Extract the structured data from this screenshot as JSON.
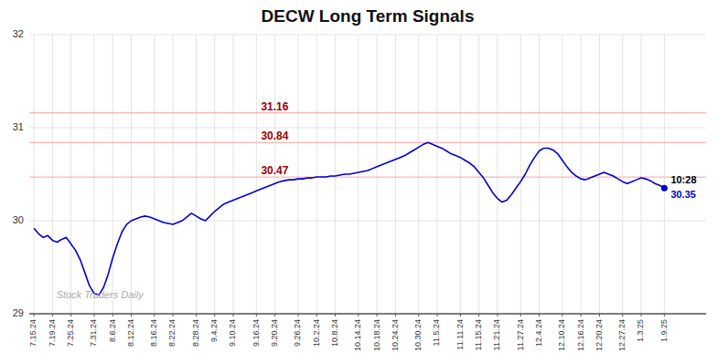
{
  "chart_data": {
    "type": "line",
    "title": "DECW Long Term Signals",
    "color": "#0000cc",
    "ylim": [
      29.0,
      32.0
    ],
    "yticks": [
      29,
      30,
      31,
      32
    ],
    "grid": true,
    "hlines": [
      {
        "y": 31.16,
        "label": "31.16",
        "color": "#ffb3b3",
        "label_color": "#990000"
      },
      {
        "y": 30.84,
        "label": "30.84",
        "color": "#ffb3b3",
        "label_color": "#990000"
      },
      {
        "y": 30.47,
        "label": "30.47",
        "color": "#ffb3b3",
        "label_color": "#990000"
      }
    ],
    "annotations": [
      {
        "text": "Stock Traders Daily",
        "color": "#aaaaaa"
      },
      {
        "text": "10:28",
        "color": "#000000"
      },
      {
        "text": "30.35",
        "color": "#0000cc"
      }
    ],
    "categories": [
      "7.15.24",
      null,
      null,
      null,
      "7.19.24",
      null,
      null,
      null,
      "7.25.24",
      null,
      null,
      null,
      null,
      "7.31.24",
      null,
      null,
      null,
      "8.6.24",
      null,
      null,
      null,
      "8.12.24",
      null,
      null,
      null,
      null,
      "8.16.24",
      null,
      null,
      null,
      "8.22.24",
      null,
      null,
      null,
      null,
      "8.28.24",
      null,
      null,
      null,
      "9.4.24",
      null,
      null,
      null,
      "9.10.24",
      null,
      null,
      null,
      null,
      "9.16.24",
      null,
      null,
      null,
      "9.20.24",
      null,
      null,
      null,
      null,
      "9.26.24",
      null,
      null,
      null,
      "10.2.24",
      null,
      null,
      null,
      "10.8.24",
      null,
      null,
      null,
      null,
      "10.14.24",
      null,
      null,
      null,
      "10.18.24",
      null,
      null,
      null,
      "10.24.24",
      null,
      null,
      null,
      null,
      "10.30.24",
      null,
      null,
      null,
      "11.5.24",
      null,
      null,
      null,
      null,
      "11.11.24",
      null,
      null,
      null,
      "11.15.24",
      null,
      null,
      null,
      "11.21.24",
      null,
      null,
      null,
      null,
      "11.27.24",
      null,
      null,
      null,
      "12.4.24",
      null,
      null,
      null,
      null,
      "12.10.24",
      null,
      null,
      null,
      "12.16.24",
      null,
      null,
      null,
      "12.20.24",
      null,
      null,
      null,
      null,
      "12.27.24",
      null,
      null,
      null,
      "1.3.25",
      null,
      null,
      null,
      null,
      "1.9.25"
    ],
    "values": [
      29.92,
      29.86,
      29.82,
      29.84,
      29.79,
      29.77,
      29.8,
      29.82,
      29.75,
      29.68,
      29.58,
      29.44,
      29.3,
      29.22,
      29.2,
      29.28,
      29.42,
      29.6,
      29.75,
      29.88,
      29.96,
      30.0,
      30.02,
      30.04,
      30.05,
      30.04,
      30.02,
      30.0,
      29.98,
      29.97,
      29.96,
      29.98,
      30.0,
      30.04,
      30.08,
      30.05,
      30.02,
      30.0,
      30.05,
      30.1,
      30.14,
      30.18,
      30.2,
      30.22,
      30.24,
      30.26,
      30.28,
      30.3,
      30.32,
      30.34,
      30.36,
      30.38,
      30.4,
      30.42,
      30.43,
      30.44,
      30.44,
      30.45,
      30.45,
      30.46,
      30.46,
      30.47,
      30.47,
      30.47,
      30.48,
      30.48,
      30.49,
      30.5,
      30.5,
      30.51,
      30.52,
      30.53,
      30.54,
      30.56,
      30.58,
      30.6,
      30.62,
      30.64,
      30.66,
      30.68,
      30.7,
      30.73,
      30.76,
      30.79,
      30.82,
      30.84,
      30.82,
      30.8,
      30.78,
      30.75,
      30.72,
      30.7,
      30.68,
      30.65,
      30.62,
      30.58,
      30.52,
      30.46,
      30.38,
      30.3,
      30.24,
      30.2,
      30.22,
      30.28,
      30.35,
      30.42,
      30.5,
      30.6,
      30.68,
      30.75,
      30.78,
      30.78,
      30.76,
      30.72,
      30.65,
      30.58,
      30.52,
      30.48,
      30.45,
      30.44,
      30.46,
      30.48,
      30.5,
      30.52,
      30.5,
      30.48,
      30.45,
      30.42,
      30.4,
      30.42,
      30.44,
      30.46,
      30.45,
      30.43,
      30.4,
      30.38,
      30.35
    ]
  }
}
